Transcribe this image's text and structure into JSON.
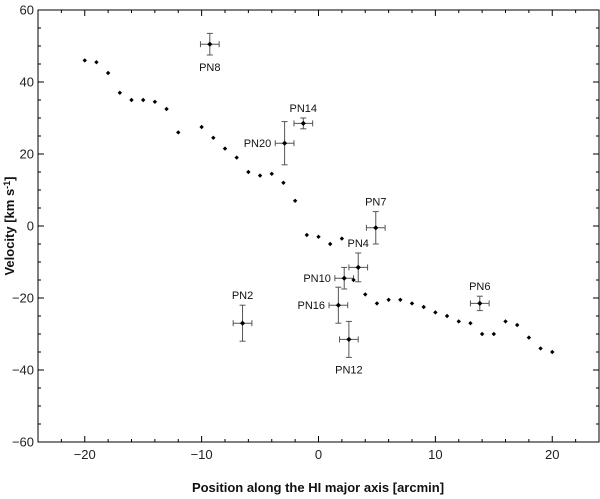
{
  "chart_data": {
    "type": "scatter",
    "title": "",
    "xlabel": "Position along the HI major axis [arcmin]",
    "ylabel": {
      "main": "Velocity [km s",
      "sup": "-1",
      "close": "]"
    },
    "xlim": [
      -24,
      24
    ],
    "ylim": [
      -60,
      60
    ],
    "xticks": [
      -20,
      -10,
      0,
      10,
      20
    ],
    "yticks": [
      -60,
      -40,
      -20,
      0,
      20,
      40,
      60
    ],
    "xtick_labels": [
      "−20",
      "−10",
      "0",
      "10",
      "20"
    ],
    "ytick_labels": [
      "−60",
      "−40",
      "−20",
      "0",
      "20",
      "40",
      "60"
    ],
    "grid": false,
    "legend": "none",
    "colors": {
      "marker": "#000000",
      "errorbar": "#555555",
      "axis": "#000000"
    },
    "series": [
      {
        "values": [
          [
            -20,
            46
          ],
          [
            -19,
            45.5
          ],
          [
            -18,
            42.5
          ],
          [
            -17,
            37
          ],
          [
            -16,
            35
          ],
          [
            -15,
            35
          ],
          [
            -14,
            34.5
          ],
          [
            -13,
            32.5
          ],
          [
            -12,
            26
          ],
          [
            -10,
            27.5
          ],
          [
            -9,
            24.5
          ],
          [
            -8,
            21.5
          ],
          [
            -7,
            19
          ],
          [
            -6,
            15
          ],
          [
            -5,
            14
          ],
          [
            -4,
            14.5
          ],
          [
            -3,
            12
          ],
          [
            -2,
            7
          ],
          [
            -1,
            -2.5
          ],
          [
            0,
            -3
          ],
          [
            1,
            -5
          ],
          [
            2,
            -3.5
          ],
          [
            3,
            -15
          ],
          [
            4,
            -19
          ],
          [
            5,
            -21.5
          ],
          [
            6,
            -20.5
          ],
          [
            7,
            -20.5
          ],
          [
            8,
            -21.5
          ],
          [
            9,
            -22.5
          ],
          [
            10,
            -24
          ],
          [
            11,
            -25
          ],
          [
            12,
            -26.5
          ],
          [
            13,
            -27
          ],
          [
            14,
            -30
          ],
          [
            15,
            -30
          ],
          [
            16,
            -26.5
          ],
          [
            17,
            -27.5
          ],
          [
            18,
            -31
          ],
          [
            19,
            -34
          ],
          [
            20,
            -35
          ]
        ]
      },
      {
        "points": [
          {
            "label": "PN8",
            "x": -9.3,
            "y": 50.5,
            "xerr": 0.8,
            "yerr": 3,
            "label_pos": "below"
          },
          {
            "label": "PN14",
            "x": -1.3,
            "y": 28.5,
            "xerr": 0.8,
            "yerr": 1.5,
            "label_pos": "above"
          },
          {
            "label": "PN20",
            "x": -2.9,
            "y": 23,
            "xerr": 0.8,
            "yerr": 6,
            "label_pos": "left"
          },
          {
            "label": "PN7",
            "x": 4.9,
            "y": -0.5,
            "xerr": 0.8,
            "yerr": 4.5,
            "label_pos": "above"
          },
          {
            "label": "PN4",
            "x": 3.4,
            "y": -11.5,
            "xerr": 0.8,
            "yerr": 4,
            "label_pos": "above"
          },
          {
            "label": "PN10",
            "x": 2.2,
            "y": -14.5,
            "xerr": 0.8,
            "yerr": 3,
            "label_pos": "left"
          },
          {
            "label": "PN16",
            "x": 1.7,
            "y": -22,
            "xerr": 0.8,
            "yerr": 5,
            "label_pos": "left"
          },
          {
            "label": "PN12",
            "x": 2.6,
            "y": -31.5,
            "xerr": 0.8,
            "yerr": 5,
            "label_pos": "below"
          },
          {
            "label": "PN2",
            "x": -6.5,
            "y": -27,
            "xerr": 0.8,
            "yerr": 5,
            "label_pos": "above"
          },
          {
            "label": "PN6",
            "x": 13.8,
            "y": -21.5,
            "xerr": 0.8,
            "yerr": 2,
            "label_pos": "above"
          }
        ]
      }
    ]
  }
}
